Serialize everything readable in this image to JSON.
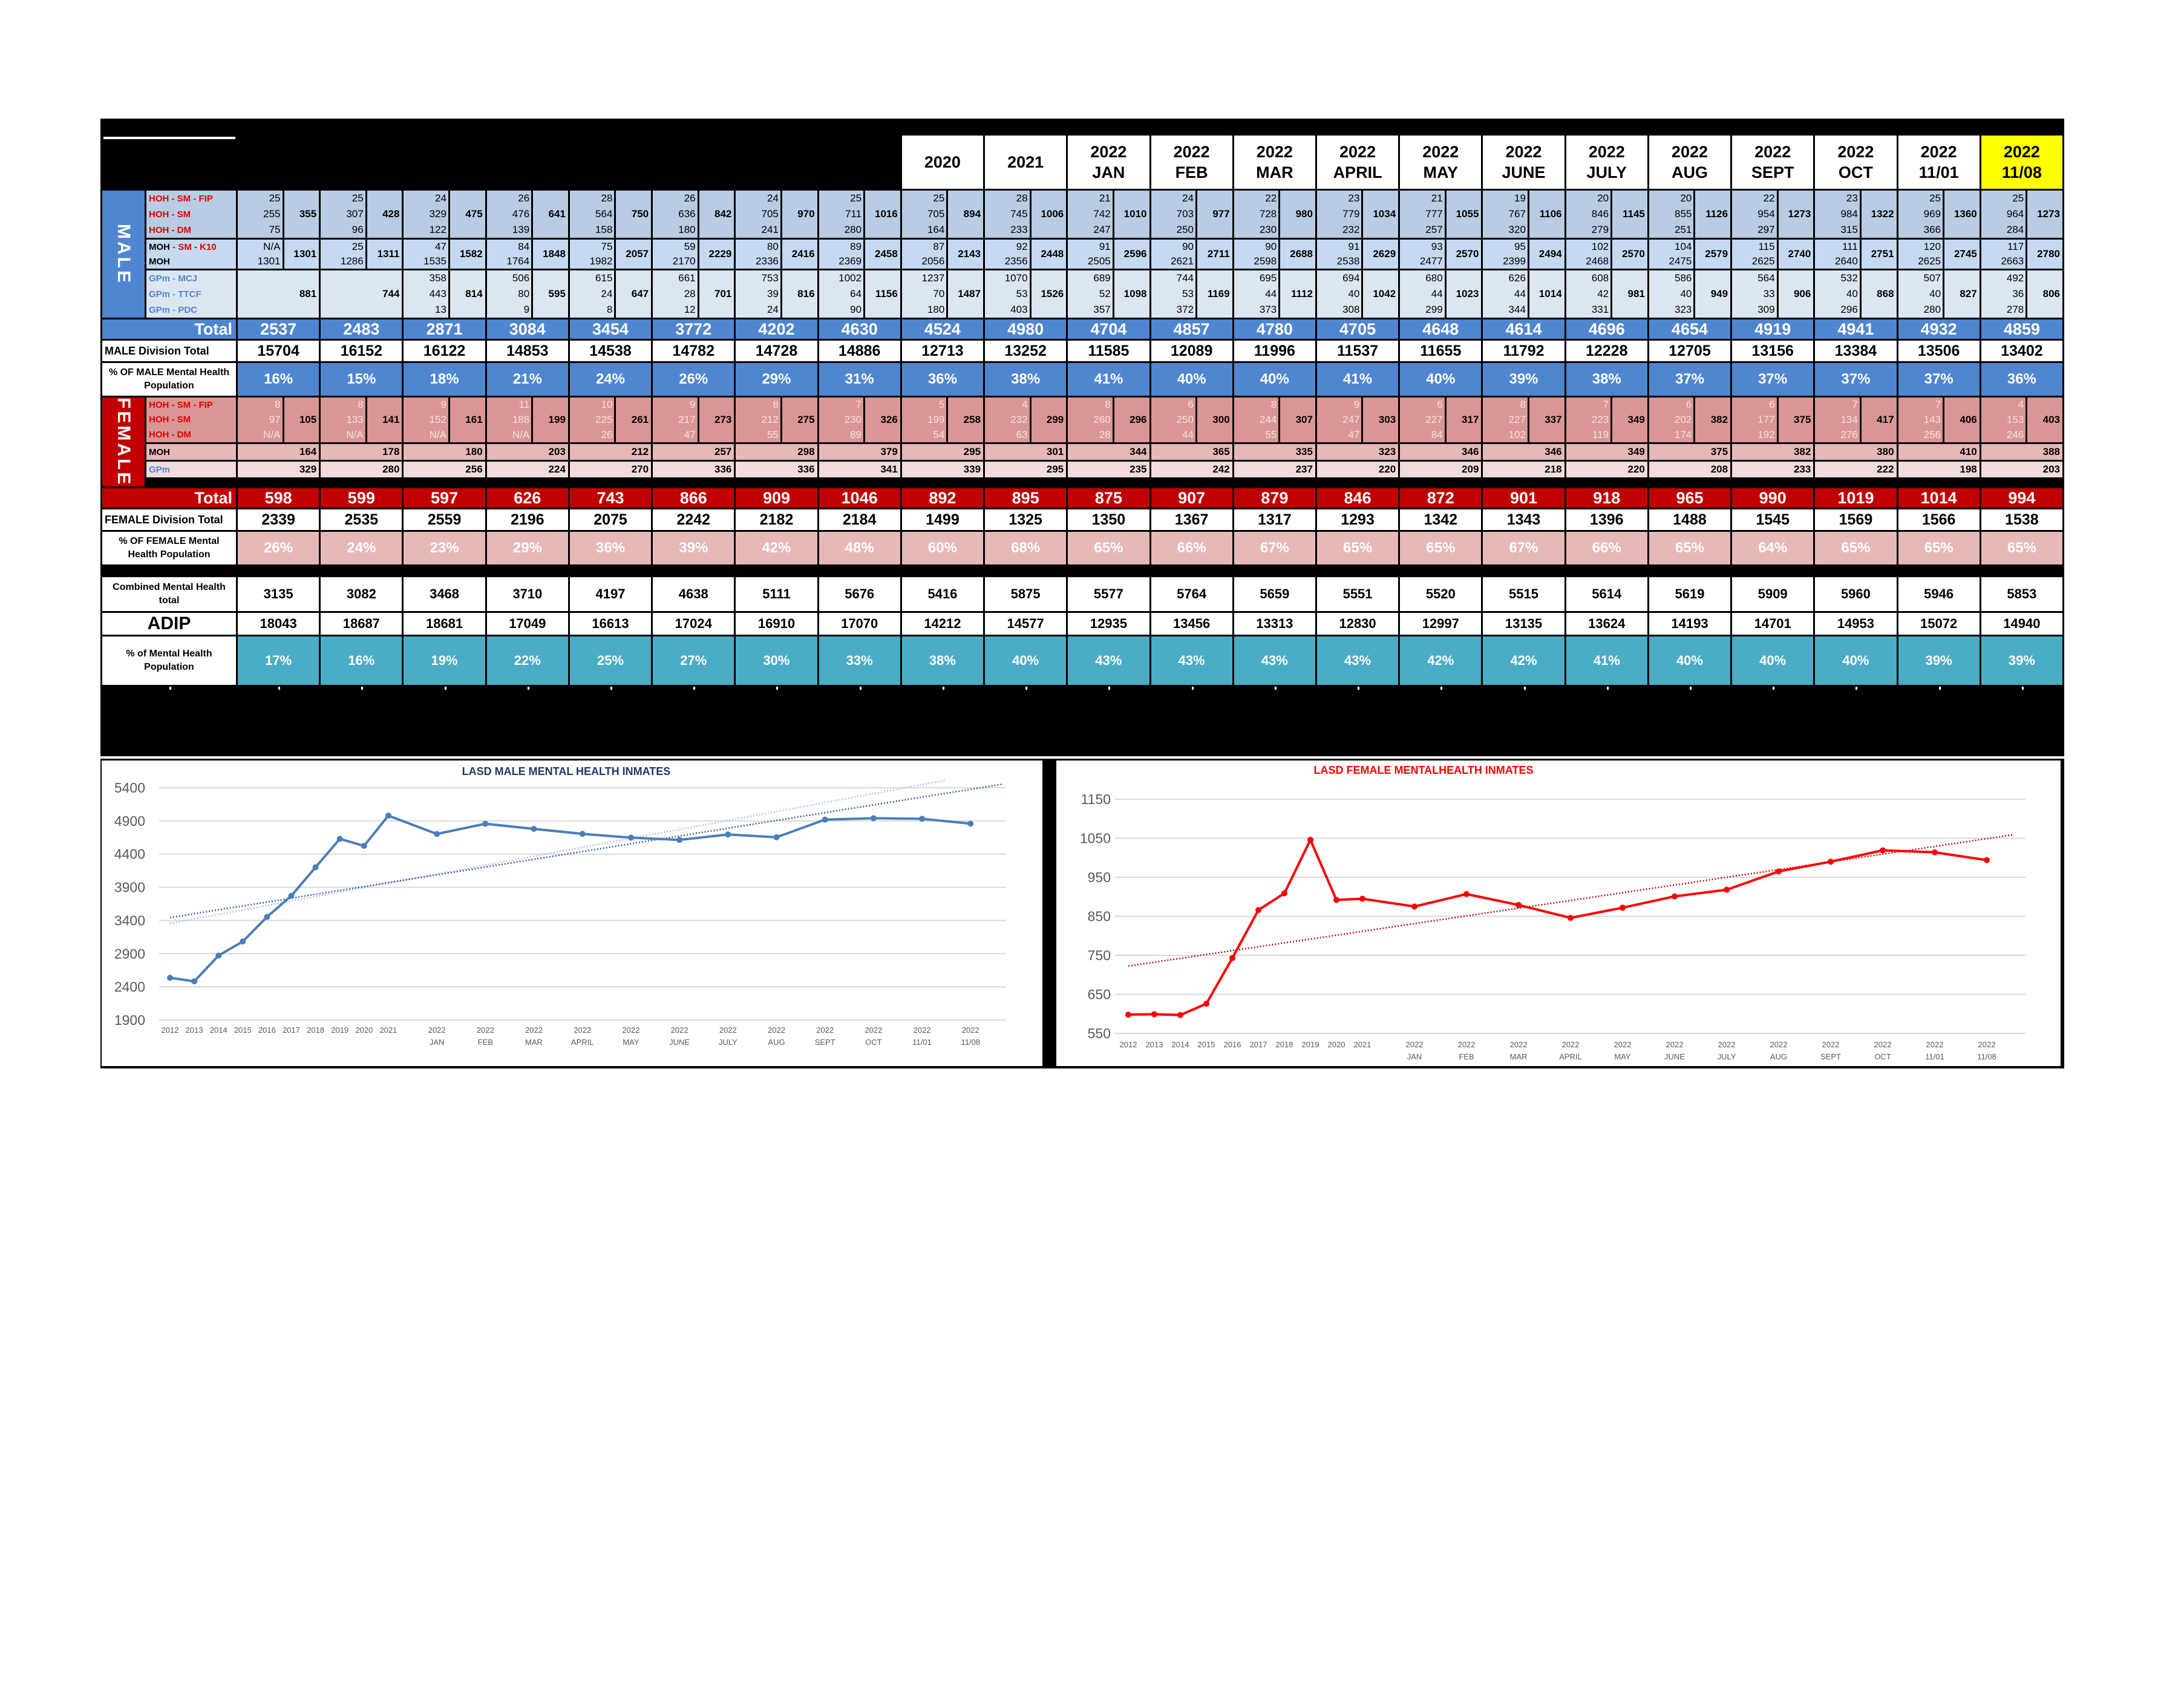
{
  "header": {
    "columns": [
      {
        "year": "2020",
        "period": ""
      },
      {
        "year": "2021",
        "period": ""
      },
      {
        "year": "2022",
        "period": "JAN"
      },
      {
        "year": "2022",
        "period": "FEB"
      },
      {
        "year": "2022",
        "period": "MAR"
      },
      {
        "year": "2022",
        "period": "APRIL"
      },
      {
        "year": "2022",
        "period": "MAY"
      },
      {
        "year": "2022",
        "period": "JUNE"
      },
      {
        "year": "2022",
        "period": "JULY"
      },
      {
        "year": "2022",
        "period": "AUG"
      },
      {
        "year": "2022",
        "period": "SEPT"
      },
      {
        "year": "2022",
        "period": "OCT"
      },
      {
        "year": "2022",
        "period": "11/01"
      },
      {
        "year": "2022",
        "period": "11/08"
      }
    ],
    "highlight_color": "#ffff00"
  },
  "male": {
    "label": "MALE",
    "hoh_labels": [
      "HOH - SM - FIP",
      "HOH - SM",
      "HOH - DM"
    ],
    "moh_label_a": "MOH",
    "moh_label_b": " - SM - K10",
    "moh_label_2": "MOH",
    "gpm_labels": [
      "GPm - MCJ",
      "GPm - TTCF",
      "GPm - PDC"
    ],
    "hoh": [
      [
        "25",
        "255",
        "75",
        "355"
      ],
      [
        "25",
        "307",
        "96",
        "428"
      ],
      [
        "24",
        "329",
        "122",
        "475"
      ],
      [
        "26",
        "476",
        "139",
        "641"
      ],
      [
        "28",
        "564",
        "158",
        "750"
      ],
      [
        "26",
        "636",
        "180",
        "842"
      ],
      [
        "24",
        "705",
        "241",
        "970"
      ],
      [
        "25",
        "711",
        "280",
        "1016"
      ],
      [
        "25",
        "705",
        "164",
        "894"
      ],
      [
        "28",
        "745",
        "233",
        "1006"
      ],
      [
        "21",
        "742",
        "247",
        "1010"
      ],
      [
        "24",
        "703",
        "250",
        "977"
      ],
      [
        "22",
        "728",
        "230",
        "980"
      ],
      [
        "23",
        "779",
        "232",
        "1034"
      ],
      [
        "21",
        "777",
        "257",
        "1055"
      ],
      [
        "19",
        "767",
        "320",
        "1106"
      ],
      [
        "20",
        "846",
        "279",
        "1145"
      ],
      [
        "20",
        "855",
        "251",
        "1126"
      ],
      [
        "22",
        "954",
        "297",
        "1273"
      ],
      [
        "23",
        "984",
        "315",
        "1322"
      ],
      [
        "25",
        "969",
        "366",
        "1360"
      ],
      [
        "25",
        "964",
        "284",
        "1273"
      ]
    ],
    "moh": [
      [
        "N/A",
        "1301",
        "1301"
      ],
      [
        "25",
        "1286",
        "1311"
      ],
      [
        "47",
        "1535",
        "1582"
      ],
      [
        "84",
        "1764",
        "1848"
      ],
      [
        "75",
        "1982",
        "2057"
      ],
      [
        "59",
        "2170",
        "2229"
      ],
      [
        "80",
        "2336",
        "2416"
      ],
      [
        "89",
        "2369",
        "2458"
      ],
      [
        "87",
        "2056",
        "2143"
      ],
      [
        "92",
        "2356",
        "2448"
      ],
      [
        "91",
        "2505",
        "2596"
      ],
      [
        "90",
        "2621",
        "2711"
      ],
      [
        "90",
        "2598",
        "2688"
      ],
      [
        "91",
        "2538",
        "2629"
      ],
      [
        "93",
        "2477",
        "2570"
      ],
      [
        "95",
        "2399",
        "2494"
      ],
      [
        "102",
        "2468",
        "2570"
      ],
      [
        "104",
        "2475",
        "2579"
      ],
      [
        "115",
        "2625",
        "2740"
      ],
      [
        "111",
        "2640",
        "2751"
      ],
      [
        "120",
        "2625",
        "2745"
      ],
      [
        "117",
        "2663",
        "2780"
      ]
    ],
    "gpm": [
      [
        "881"
      ],
      [
        "744"
      ],
      [
        "358",
        "443",
        "13",
        "814"
      ],
      [
        "506",
        "80",
        "9",
        "595"
      ],
      [
        "615",
        "24",
        "8",
        "647"
      ],
      [
        "661",
        "28",
        "12",
        "701"
      ],
      [
        "753",
        "39",
        "24",
        "816"
      ],
      [
        "1002",
        "64",
        "90",
        "1156"
      ],
      [
        "1237",
        "70",
        "180",
        "1487"
      ],
      [
        "1070",
        "53",
        "403",
        "1526"
      ],
      [
        "689",
        "52",
        "357",
        "1098"
      ],
      [
        "744",
        "53",
        "372",
        "1169"
      ],
      [
        "695",
        "44",
        "373",
        "1112"
      ],
      [
        "694",
        "40",
        "308",
        "1042"
      ],
      [
        "680",
        "44",
        "299",
        "1023"
      ],
      [
        "626",
        "44",
        "344",
        "1014"
      ],
      [
        "608",
        "42",
        "331",
        "981"
      ],
      [
        "586",
        "40",
        "323",
        "949"
      ],
      [
        "564",
        "33",
        "309",
        "906"
      ],
      [
        "532",
        "40",
        "296",
        "868"
      ],
      [
        "507",
        "40",
        "280",
        "827"
      ],
      [
        "492",
        "36",
        "278",
        "806"
      ]
    ],
    "total_label": "Total",
    "total": [
      "2537",
      "2483",
      "2871",
      "3084",
      "3454",
      "3772",
      "4202",
      "4630",
      "4524",
      "4980",
      "4704",
      "4857",
      "4780",
      "4705",
      "4648",
      "4614",
      "4696",
      "4654",
      "4919",
      "4941",
      "4932",
      "4859"
    ],
    "division_label": "MALE Division Total",
    "division_total": [
      "15704",
      "16152",
      "16122",
      "14853",
      "14538",
      "14782",
      "14728",
      "14886",
      "12713",
      "13252",
      "11585",
      "12089",
      "11996",
      "11537",
      "11655",
      "11792",
      "12228",
      "12705",
      "13156",
      "13384",
      "13506",
      "13402"
    ],
    "pct_label": "% OF MALE Mental Health Population",
    "pct": [
      "16%",
      "15%",
      "18%",
      "21%",
      "24%",
      "26%",
      "29%",
      "31%",
      "36%",
      "38%",
      "41%",
      "40%",
      "40%",
      "41%",
      "40%",
      "39%",
      "38%",
      "37%",
      "37%",
      "37%",
      "37%",
      "36%"
    ],
    "color": "#4f86cf"
  },
  "female": {
    "label": "FEMALE",
    "hoh_labels": [
      "HOH - SM - FIP",
      "HOH - SM",
      "HOH - DM"
    ],
    "moh_label": "MOH",
    "gpm_label": "GPm",
    "hoh": [
      [
        "8",
        "97",
        "N/A",
        "105"
      ],
      [
        "8",
        "133",
        "N/A",
        "141"
      ],
      [
        "9",
        "152",
        "N/A",
        "161"
      ],
      [
        "11",
        "188",
        "N/A",
        "199"
      ],
      [
        "10",
        "225",
        "26",
        "261"
      ],
      [
        "9",
        "217",
        "47",
        "273"
      ],
      [
        "8",
        "212",
        "55",
        "275"
      ],
      [
        "7",
        "230",
        "89",
        "326"
      ],
      [
        "5",
        "199",
        "54",
        "258"
      ],
      [
        "4",
        "232",
        "63",
        "299"
      ],
      [
        "8",
        "260",
        "28",
        "296"
      ],
      [
        "6",
        "250",
        "44",
        "300"
      ],
      [
        "8",
        "244",
        "55",
        "307"
      ],
      [
        "9",
        "247",
        "47",
        "303"
      ],
      [
        "6",
        "227",
        "84",
        "317"
      ],
      [
        "8",
        "227",
        "102",
        "337"
      ],
      [
        "7",
        "223",
        "119",
        "349"
      ],
      [
        "6",
        "202",
        "174",
        "382"
      ],
      [
        "6",
        "177",
        "192",
        "375"
      ],
      [
        "7",
        "134",
        "276",
        "417"
      ],
      [
        "7",
        "143",
        "256",
        "406"
      ],
      [
        "4",
        "153",
        "246",
        "403"
      ]
    ],
    "moh": [
      "164",
      "178",
      "180",
      "203",
      "212",
      "257",
      "298",
      "379",
      "295",
      "301",
      "344",
      "365",
      "335",
      "323",
      "346",
      "346",
      "349",
      "375",
      "382",
      "380",
      "410",
      "388"
    ],
    "gpm": [
      "329",
      "280",
      "256",
      "224",
      "270",
      "336",
      "336",
      "341",
      "339",
      "295",
      "235",
      "242",
      "237",
      "220",
      "209",
      "218",
      "220",
      "208",
      "233",
      "222",
      "198",
      "203"
    ],
    "total_label": "Total",
    "total": [
      "598",
      "599",
      "597",
      "626",
      "743",
      "866",
      "909",
      "1046",
      "892",
      "895",
      "875",
      "907",
      "879",
      "846",
      "872",
      "901",
      "918",
      "965",
      "990",
      "1019",
      "1014",
      "994"
    ],
    "division_label": "FEMALE Division Total",
    "division_total": [
      "2339",
      "2535",
      "2559",
      "2196",
      "2075",
      "2242",
      "2182",
      "2184",
      "1499",
      "1325",
      "1350",
      "1367",
      "1317",
      "1293",
      "1342",
      "1343",
      "1396",
      "1488",
      "1545",
      "1569",
      "1566",
      "1538"
    ],
    "pct_label": "% OF FEMALE Mental Health Population",
    "pct": [
      "26%",
      "24%",
      "23%",
      "29%",
      "36%",
      "39%",
      "42%",
      "48%",
      "60%",
      "68%",
      "65%",
      "66%",
      "67%",
      "65%",
      "65%",
      "67%",
      "66%",
      "65%",
      "64%",
      "65%",
      "65%",
      "65%"
    ],
    "color": "#c00000"
  },
  "combined": {
    "label": "Combined Mental Health total",
    "values": [
      "3135",
      "3082",
      "3468",
      "3710",
      "4197",
      "4638",
      "5111",
      "5676",
      "5416",
      "5875",
      "5577",
      "5764",
      "5659",
      "5551",
      "5520",
      "5515",
      "5614",
      "5619",
      "5909",
      "5960",
      "5946",
      "5853"
    ]
  },
  "adip": {
    "label": "ADIP",
    "values": [
      "18043",
      "18687",
      "18681",
      "17049",
      "16613",
      "17024",
      "16910",
      "17070",
      "14212",
      "14577",
      "12935",
      "13456",
      "13313",
      "12830",
      "12997",
      "13135",
      "13624",
      "14193",
      "14701",
      "14953",
      "15072",
      "14940"
    ]
  },
  "pct_mh": {
    "label": "% of Mental Health Population",
    "values": [
      "17%",
      "16%",
      "19%",
      "22%",
      "25%",
      "27%",
      "30%",
      "33%",
      "38%",
      "40%",
      "43%",
      "43%",
      "43%",
      "43%",
      "42%",
      "42%",
      "41%",
      "40%",
      "40%",
      "40%",
      "39%",
      "39%"
    ],
    "color": "#4bacc6"
  },
  "chart_data": [
    {
      "type": "line",
      "title": "LASD MALE MENTAL HEALTH INMATES",
      "categories": [
        [
          "2012"
        ],
        [
          "2013"
        ],
        [
          "2014"
        ],
        [
          "2015"
        ],
        [
          "2016"
        ],
        [
          "2017"
        ],
        [
          "2018"
        ],
        [
          "2019"
        ],
        [
          "2020"
        ],
        [
          "2021"
        ],
        [
          "2022",
          "JAN"
        ],
        [
          "2022",
          "FEB"
        ],
        [
          "2022",
          "MAR"
        ],
        [
          "2022",
          "APRIL"
        ],
        [
          "2022",
          "MAY"
        ],
        [
          "2022",
          "JUNE"
        ],
        [
          "2022",
          "JULY"
        ],
        [
          "2022",
          "AUG"
        ],
        [
          "2022",
          "SEPT"
        ],
        [
          "2022",
          "OCT"
        ],
        [
          "2022",
          "11/01"
        ],
        [
          "2022",
          "11/08"
        ]
      ],
      "values": [
        2537,
        2483,
        2871,
        3084,
        3454,
        3772,
        4202,
        4630,
        4524,
        4980,
        4704,
        4857,
        4780,
        4705,
        4648,
        4614,
        4696,
        4654,
        4919,
        4941,
        4932,
        4859
      ],
      "ylim": [
        1900,
        5400
      ],
      "yticks": [
        "1900",
        "2400",
        "2900",
        "3400",
        "3900",
        "4400",
        "4900",
        "5400"
      ],
      "color": "#4a7ebb",
      "trendline": "linear (dotted)",
      "grid": true,
      "legend": "none"
    },
    {
      "type": "line",
      "title": "LASD FEMALE MENTALHEALTH INMATES",
      "categories": [
        [
          "2012"
        ],
        [
          "2013"
        ],
        [
          "2014"
        ],
        [
          "2015"
        ],
        [
          "2016"
        ],
        [
          "2017"
        ],
        [
          "2018"
        ],
        [
          "2019"
        ],
        [
          "2020"
        ],
        [
          "2021"
        ],
        [
          "2022",
          "JAN"
        ],
        [
          "2022",
          "FEB"
        ],
        [
          "2022",
          "MAR"
        ],
        [
          "2022",
          "APRIL"
        ],
        [
          "2022",
          "MAY"
        ],
        [
          "2022",
          "JUNE"
        ],
        [
          "2022",
          "JULY"
        ],
        [
          "2022",
          "AUG"
        ],
        [
          "2022",
          "SEPT"
        ],
        [
          "2022",
          "OCT"
        ],
        [
          "2022",
          "11/01"
        ],
        [
          "2022",
          "11/08"
        ]
      ],
      "values": [
        598,
        599,
        597,
        626,
        743,
        866,
        909,
        1046,
        892,
        895,
        875,
        907,
        879,
        846,
        872,
        901,
        918,
        965,
        990,
        1019,
        1014,
        994
      ],
      "ylim": [
        550,
        1150
      ],
      "yticks": [
        "550",
        "650",
        "750",
        "850",
        "950",
        "1050",
        "1150"
      ],
      "color": "#ff0000",
      "trendline": "linear (dotted)",
      "grid": true,
      "legend": "none"
    }
  ]
}
